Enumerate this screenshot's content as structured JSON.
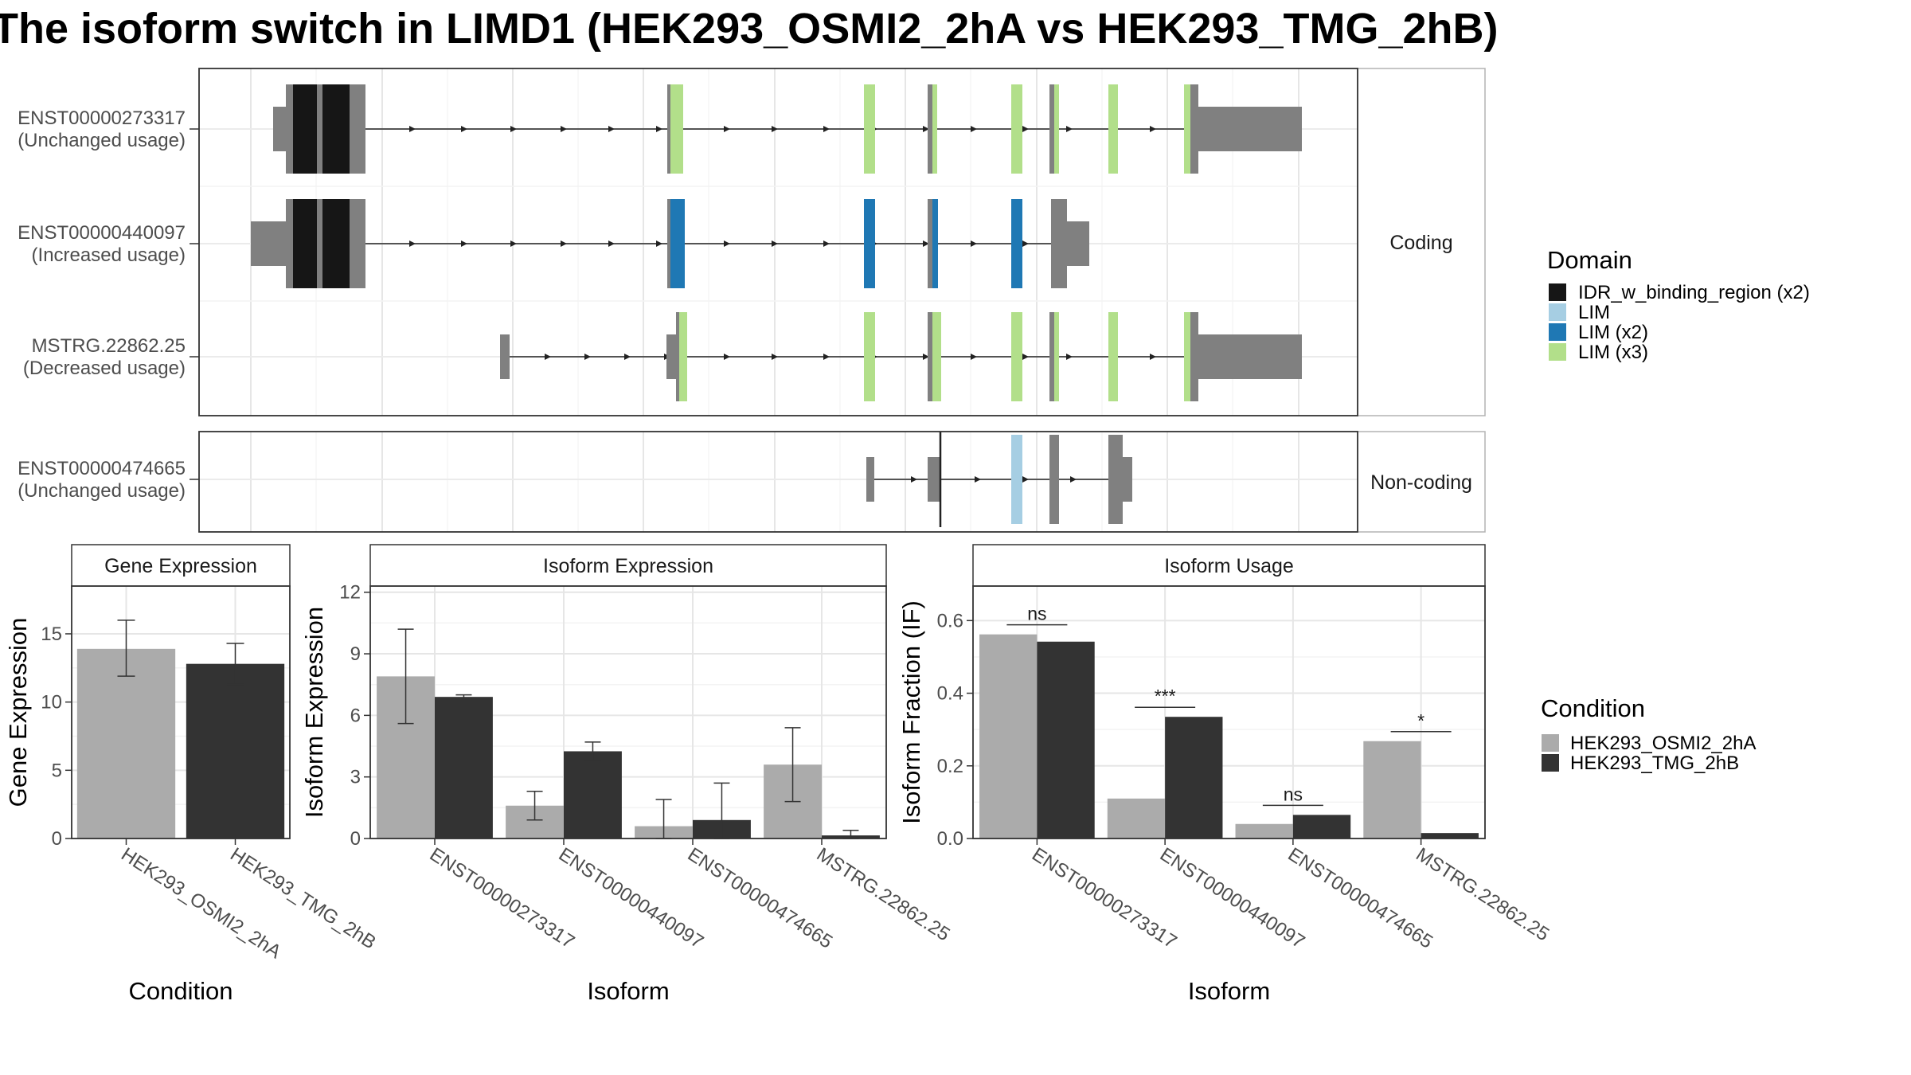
{
  "title": "The isoform switch in LIMD1 (HEK293_OSMI2_2hA vs HEK293_TMG_2hB)",
  "colors": {
    "condA": "#ABABAB",
    "condB": "#333333",
    "exon": "#808080",
    "IDR_w_binding_region (x2)": "#161616",
    "LIM": "#A6CEE3",
    "LIM (x2)": "#1F78B4",
    "LIM (x3)": "#B2DF8A"
  },
  "domain_legend": {
    "title": "Domain",
    "items": [
      "IDR_w_binding_region (x2)",
      "LIM",
      "LIM (x2)",
      "LIM (x3)"
    ]
  },
  "condition_legend": {
    "title": "Condition",
    "items": [
      "HEK293_OSMI2_2hA",
      "HEK293_TMG_2hB"
    ]
  },
  "structure": {
    "facets": [
      "Coding",
      "Non-coding"
    ],
    "transcripts": [
      {
        "facet": "Coding",
        "id": "ENST00000273317",
        "usage": "(Unchanged usage)"
      },
      {
        "facet": "Coding",
        "id": "ENST00000440097",
        "usage": "(Increased usage)"
      },
      {
        "facet": "Coding",
        "id": "MSTRG.22862.25",
        "usage": "(Decreased usage)"
      },
      {
        "facet": "Non-coding",
        "id": "ENST00000474665",
        "usage": "(Unchanged usage)"
      }
    ]
  },
  "chart_data": [
    {
      "type": "bar",
      "title": "Gene Expression",
      "xlabel": "Condition",
      "ylabel": "Gene Expression",
      "ylim": [
        0,
        18.5
      ],
      "yticks": [
        0,
        5,
        10,
        15
      ],
      "categories": [
        "HEK293_OSMI2_2hA",
        "HEK293_TMG_2hB"
      ],
      "values": [
        13.9,
        12.8
      ],
      "err_low": [
        11.9,
        11.3
      ],
      "err_high": [
        16.0,
        14.3
      ]
    },
    {
      "type": "bar",
      "title": "Isoform Expression",
      "xlabel": "Isoform",
      "ylabel": "Isoform Expression",
      "ylim": [
        0,
        12.3
      ],
      "yticks": [
        0,
        3,
        6,
        9,
        12
      ],
      "categories": [
        "ENST00000273317",
        "ENST00000440097",
        "ENST00000474665",
        "MSTRG.22862.25"
      ],
      "series": [
        {
          "name": "HEK293_OSMI2_2hA",
          "values": [
            7.9,
            1.6,
            0.6,
            3.6
          ],
          "err_low": [
            5.6,
            0.9,
            0.0,
            1.8
          ],
          "err_high": [
            10.2,
            2.3,
            1.9,
            5.4
          ]
        },
        {
          "name": "HEK293_TMG_2hB",
          "values": [
            6.9,
            4.25,
            0.9,
            0.15
          ],
          "err_low": [
            6.8,
            3.8,
            0.0,
            0.0
          ],
          "err_high": [
            7.0,
            4.7,
            2.7,
            0.4
          ]
        }
      ]
    },
    {
      "type": "bar",
      "title": "Isoform Usage",
      "xlabel": "Isoform",
      "ylabel": "Isoform Fraction (IF)",
      "ylim": [
        0,
        0.695
      ],
      "yticks": [
        0,
        0.2,
        0.4,
        0.6
      ],
      "ytick_labels": [
        "0.0",
        "0.2",
        "0.4",
        "0.6"
      ],
      "categories": [
        "ENST00000273317",
        "ENST00000440097",
        "ENST00000474665",
        "MSTRG.22862.25"
      ],
      "series": [
        {
          "name": "HEK293_OSMI2_2hA",
          "values": [
            0.562,
            0.11,
            0.04,
            0.268
          ]
        },
        {
          "name": "HEK293_TMG_2hB",
          "values": [
            0.542,
            0.335,
            0.065,
            0.015
          ]
        }
      ],
      "significance": [
        "ns",
        "***",
        "ns",
        "*"
      ]
    }
  ]
}
